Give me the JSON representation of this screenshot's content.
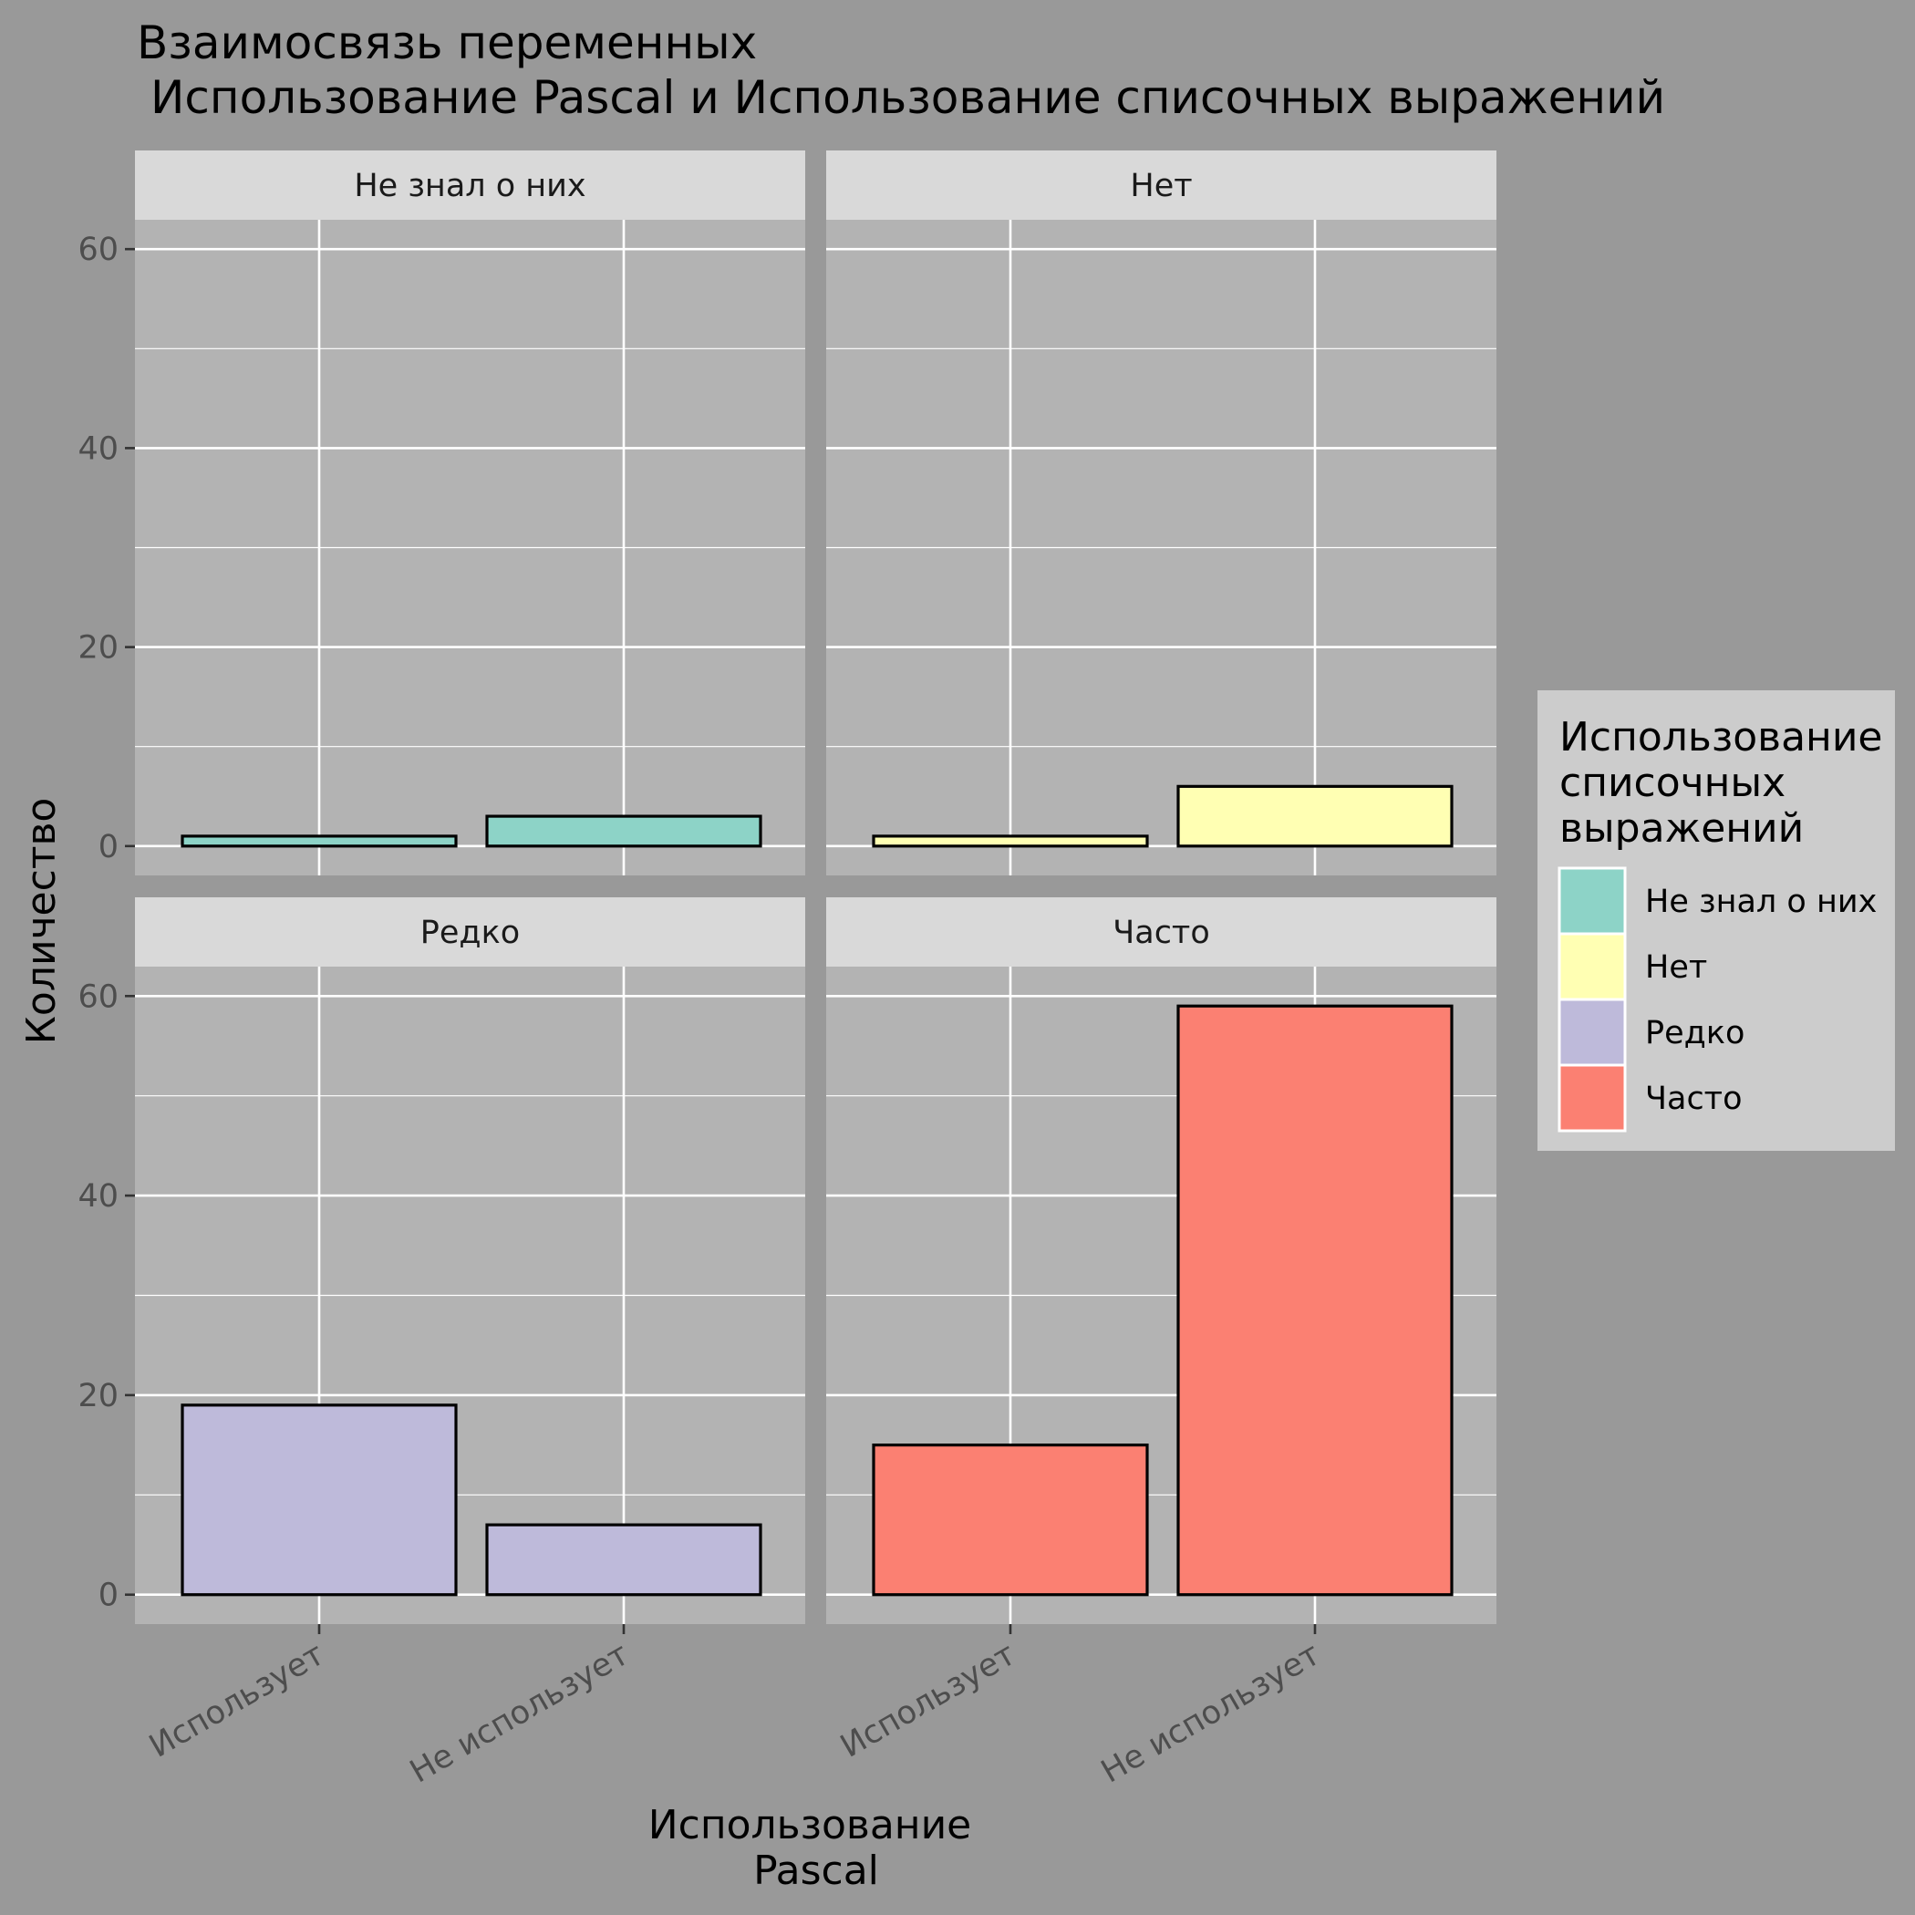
{
  "chart_data": {
    "type": "bar",
    "title": "Взаимосвязь переменных",
    "subtitle": "Использование Pascal и Использование списочных выражений",
    "xlabel": [
      "Использование",
      "Pascal"
    ],
    "ylabel": "Количество",
    "categories": [
      "Использует",
      "Не использует"
    ],
    "ylim": [
      0,
      60
    ],
    "y_ticks": [
      0,
      20,
      40,
      60
    ],
    "grid": true,
    "legend": {
      "title": [
        "Использование",
        "списочных",
        "выражений"
      ],
      "placement": "right",
      "entries": [
        "Не знал о них",
        "Нет",
        "Редко",
        "Часто"
      ]
    },
    "facets": [
      {
        "label": "Не знал о них",
        "color": "#8dd3c7",
        "values": [
          1,
          3
        ]
      },
      {
        "label": "Нет",
        "color": "#ffffb3",
        "values": [
          1,
          6
        ]
      },
      {
        "label": "Редко",
        "color": "#bebada",
        "values": [
          19,
          7
        ]
      },
      {
        "label": "Часто",
        "color": "#fb8072",
        "values": [
          15,
          59
        ]
      }
    ]
  },
  "colors": {
    "background": "#999999",
    "panel": "#b3b3b3",
    "strip": "#d9d9d9",
    "grid": "#ffffff",
    "legend_box": "#cccccc",
    "bar_outline": "#000000"
  }
}
